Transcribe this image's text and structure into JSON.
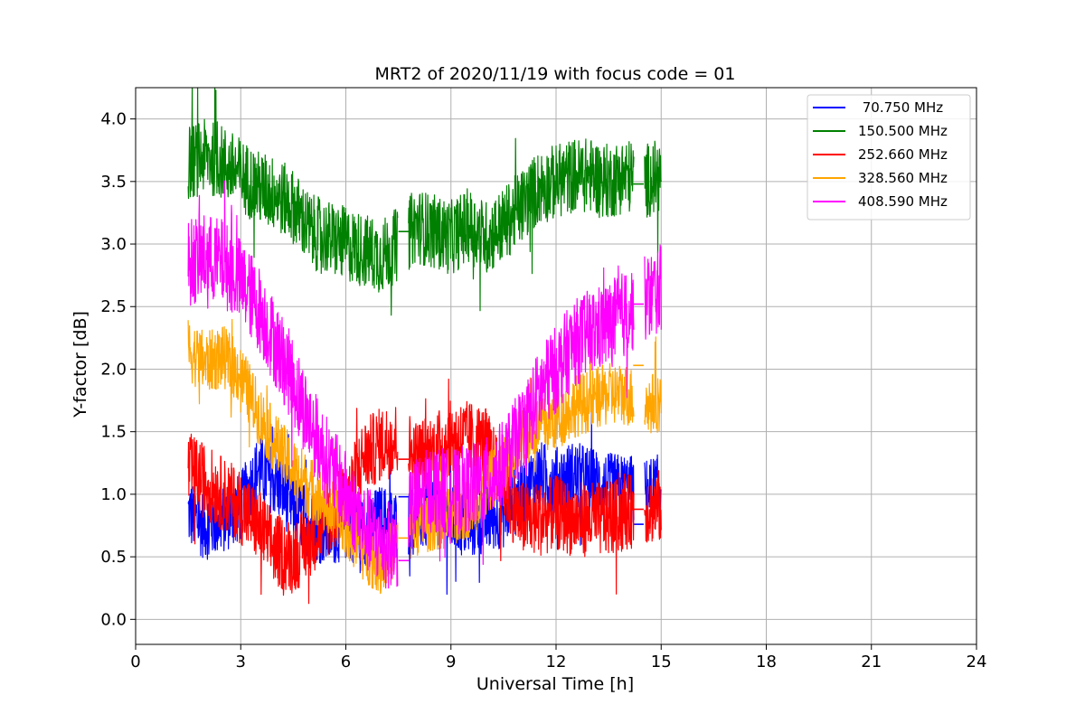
{
  "chart_data": {
    "type": "line",
    "title": "MRT2 of 2020/11/19 with focus code = 01",
    "xlabel": "Universal Time [h]",
    "ylabel": "Y-factor [dB]",
    "xlim": [
      0,
      24
    ],
    "ylim": [
      -0.2,
      4.25
    ],
    "xticks": [
      0,
      3,
      6,
      9,
      12,
      15,
      18,
      21,
      24
    ],
    "yticks": [
      0.0,
      0.5,
      1.0,
      1.5,
      2.0,
      2.5,
      3.0,
      3.5,
      4.0
    ],
    "xtick_labels": [
      "0",
      "3",
      "6",
      "9",
      "12",
      "15",
      "18",
      "21",
      "24"
    ],
    "ytick_labels": [
      "0.0",
      "0.5",
      "1.0",
      "1.5",
      "2.0",
      "2.5",
      "3.0",
      "3.5",
      "4.0"
    ],
    "grid": true,
    "legend_position": "top-right",
    "series": [
      {
        "name": " 70.750 MHz",
        "color": "#0000ff",
        "baseline": [
          [
            1.5,
            0.85
          ],
          [
            2.0,
            0.75
          ],
          [
            2.5,
            0.8
          ],
          [
            3.0,
            0.9
          ],
          [
            3.5,
            1.2
          ],
          [
            4.0,
            1.1
          ],
          [
            4.5,
            0.9
          ],
          [
            5.0,
            0.75
          ],
          [
            5.5,
            0.7
          ],
          [
            6.0,
            0.75
          ],
          [
            6.5,
            0.7
          ],
          [
            7.0,
            0.8
          ],
          [
            7.5,
            0.75
          ],
          [
            8.0,
            0.8
          ],
          [
            8.5,
            0.85
          ],
          [
            9.0,
            0.8
          ],
          [
            9.5,
            0.75
          ],
          [
            10.0,
            0.8
          ],
          [
            10.5,
            0.85
          ],
          [
            11.0,
            1.0
          ],
          [
            11.5,
            1.15
          ],
          [
            12.0,
            1.1
          ],
          [
            12.5,
            1.15
          ],
          [
            13.0,
            1.1
          ],
          [
            13.5,
            1.05
          ],
          [
            14.0,
            1.05
          ],
          [
            14.5,
            1.0
          ],
          [
            15.0,
            1.05
          ]
        ],
        "spread": 0.28,
        "flat_segments": [
          [
            7.5,
            7.8,
            0.98
          ],
          [
            14.2,
            14.5,
            0.76
          ]
        ]
      },
      {
        "name": "150.500 MHz",
        "color": "#008000",
        "baseline": [
          [
            1.5,
            3.65
          ],
          [
            2.0,
            3.7
          ],
          [
            2.5,
            3.65
          ],
          [
            3.0,
            3.55
          ],
          [
            3.5,
            3.45
          ],
          [
            4.0,
            3.4
          ],
          [
            4.5,
            3.3
          ],
          [
            5.0,
            3.1
          ],
          [
            5.5,
            3.05
          ],
          [
            6.0,
            3.0
          ],
          [
            6.5,
            2.95
          ],
          [
            7.0,
            2.9
          ],
          [
            7.5,
            3.0
          ],
          [
            8.0,
            3.15
          ],
          [
            8.5,
            3.1
          ],
          [
            9.0,
            3.05
          ],
          [
            9.5,
            3.15
          ],
          [
            10.0,
            3.05
          ],
          [
            10.5,
            3.15
          ],
          [
            11.0,
            3.3
          ],
          [
            11.5,
            3.45
          ],
          [
            12.0,
            3.5
          ],
          [
            12.5,
            3.55
          ],
          [
            13.0,
            3.55
          ],
          [
            13.5,
            3.5
          ],
          [
            14.0,
            3.55
          ],
          [
            14.5,
            3.5
          ],
          [
            15.0,
            3.55
          ]
        ],
        "spread": 0.3,
        "flat_segments": [
          [
            7.5,
            7.8,
            3.1
          ],
          [
            14.2,
            14.5,
            3.48
          ]
        ]
      },
      {
        "name": "252.660 MHz",
        "color": "#ff0000",
        "baseline": [
          [
            1.5,
            1.2
          ],
          [
            2.0,
            1.1
          ],
          [
            2.5,
            1.0
          ],
          [
            3.0,
            0.9
          ],
          [
            3.5,
            0.75
          ],
          [
            4.0,
            0.55
          ],
          [
            4.5,
            0.5
          ],
          [
            5.0,
            0.65
          ],
          [
            5.5,
            0.8
          ],
          [
            6.0,
            0.95
          ],
          [
            6.5,
            1.3
          ],
          [
            7.0,
            1.4
          ],
          [
            7.5,
            1.45
          ],
          [
            8.0,
            1.3
          ],
          [
            8.5,
            1.35
          ],
          [
            9.0,
            1.45
          ],
          [
            9.5,
            1.45
          ],
          [
            10.0,
            1.4
          ],
          [
            10.5,
            1.05
          ],
          [
            11.0,
            0.8
          ],
          [
            11.5,
            0.8
          ],
          [
            12.0,
            0.85
          ],
          [
            12.5,
            0.8
          ],
          [
            13.0,
            0.8
          ],
          [
            13.5,
            0.8
          ],
          [
            14.0,
            0.85
          ],
          [
            14.5,
            0.9
          ],
          [
            15.0,
            0.9
          ]
        ],
        "spread": 0.3,
        "flat_segments": [
          [
            7.5,
            7.8,
            1.28
          ],
          [
            14.2,
            14.5,
            0.88
          ]
        ]
      },
      {
        "name": "328.560 MHz",
        "color": "#ffa500",
        "baseline": [
          [
            1.5,
            2.15
          ],
          [
            2.0,
            2.05
          ],
          [
            2.5,
            2.1
          ],
          [
            3.0,
            1.95
          ],
          [
            3.5,
            1.65
          ],
          [
            4.0,
            1.4
          ],
          [
            4.5,
            1.2
          ],
          [
            5.0,
            1.05
          ],
          [
            5.5,
            0.9
          ],
          [
            6.0,
            0.75
          ],
          [
            6.5,
            0.55
          ],
          [
            7.0,
            0.45
          ],
          [
            7.5,
            0.6
          ],
          [
            8.0,
            0.75
          ],
          [
            8.5,
            0.8
          ],
          [
            9.0,
            0.8
          ],
          [
            9.5,
            0.9
          ],
          [
            10.0,
            1.05
          ],
          [
            10.5,
            1.25
          ],
          [
            11.0,
            1.45
          ],
          [
            11.5,
            1.55
          ],
          [
            12.0,
            1.6
          ],
          [
            12.5,
            1.7
          ],
          [
            13.0,
            1.75
          ],
          [
            13.5,
            1.8
          ],
          [
            14.0,
            1.8
          ],
          [
            14.5,
            1.7
          ],
          [
            15.0,
            1.75
          ]
        ],
        "spread": 0.25,
        "flat_segments": [
          [
            7.5,
            7.8,
            0.65
          ],
          [
            14.2,
            14.5,
            2.03
          ]
        ]
      },
      {
        "name": "408.590 MHz",
        "color": "#ff00ff",
        "baseline": [
          [
            1.5,
            2.85
          ],
          [
            2.0,
            2.9
          ],
          [
            2.5,
            2.85
          ],
          [
            3.0,
            2.7
          ],
          [
            3.5,
            2.5
          ],
          [
            4.0,
            2.2
          ],
          [
            4.5,
            1.9
          ],
          [
            5.0,
            1.55
          ],
          [
            5.5,
            1.25
          ],
          [
            6.0,
            1.0
          ],
          [
            6.5,
            0.75
          ],
          [
            7.0,
            0.6
          ],
          [
            7.5,
            0.6
          ],
          [
            8.0,
            0.95
          ],
          [
            8.5,
            1.05
          ],
          [
            9.0,
            1.0
          ],
          [
            9.5,
            1.05
          ],
          [
            10.0,
            1.1
          ],
          [
            10.5,
            1.25
          ],
          [
            11.0,
            1.5
          ],
          [
            11.5,
            1.8
          ],
          [
            12.0,
            2.0
          ],
          [
            12.5,
            2.2
          ],
          [
            13.0,
            2.3
          ],
          [
            13.5,
            2.35
          ],
          [
            14.0,
            2.45
          ],
          [
            14.5,
            2.55
          ],
          [
            15.0,
            2.65
          ]
        ],
        "spread": 0.35,
        "flat_segments": [
          [
            7.5,
            7.8,
            0.47
          ],
          [
            14.2,
            14.5,
            2.52
          ]
        ]
      }
    ]
  }
}
